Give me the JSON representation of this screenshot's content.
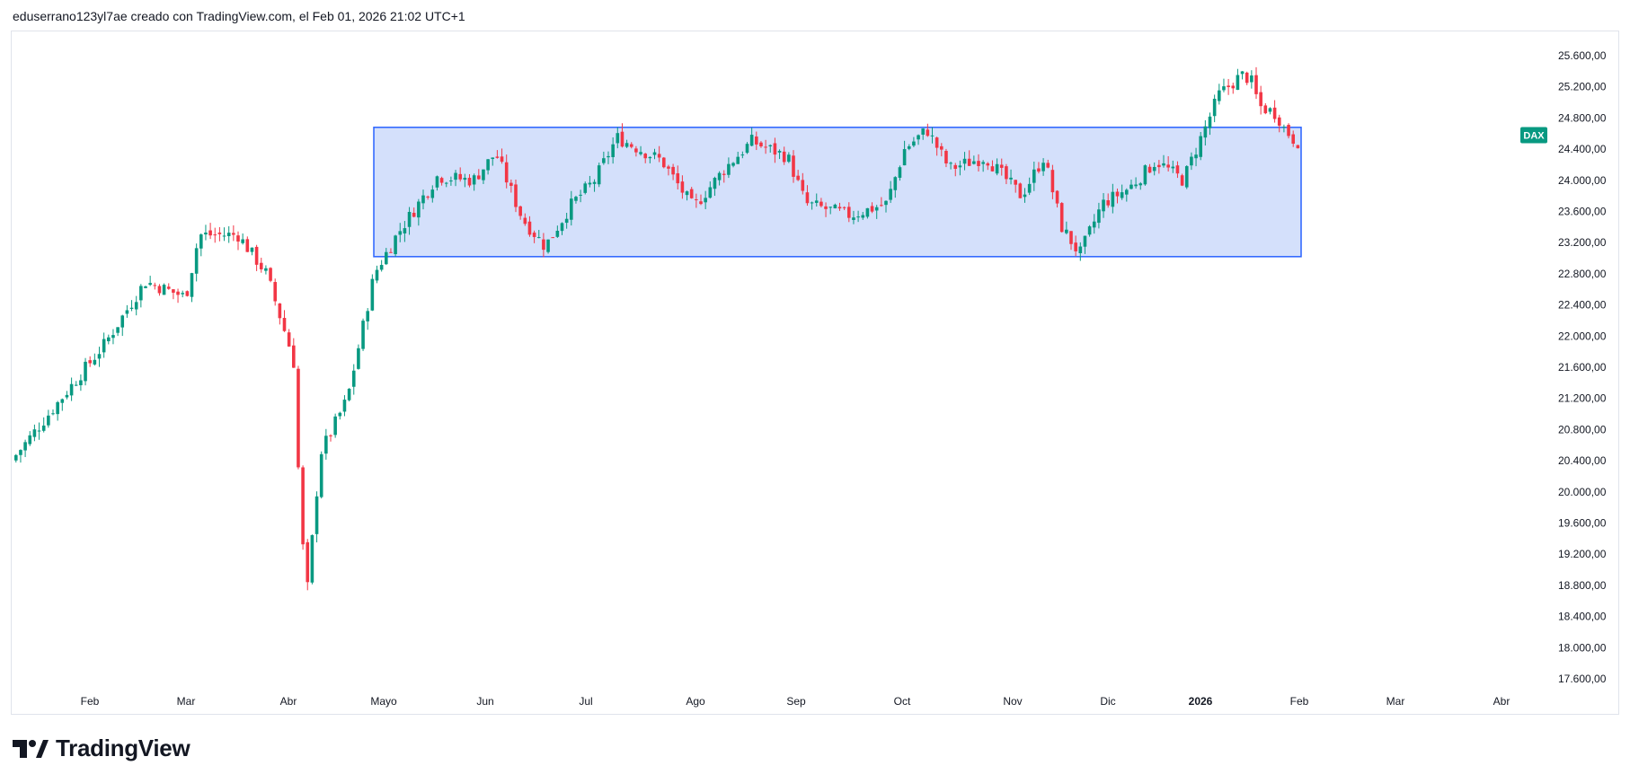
{
  "header": {
    "attribution": "eduserrano123yl7ae creado con TradingView.com, el Feb 01, 2026 21:02 UTC+1"
  },
  "brand": {
    "name": "TradingView",
    "logo_icon": "tradingview-logo-icon"
  },
  "colors": {
    "up": "#089981",
    "down": "#f23645",
    "range_fill": "#d4e0fb",
    "range_stroke": "#2962ff",
    "price_badge": "#089981",
    "grid_frame": "#e0e3eb"
  },
  "chart_data": {
    "type": "candlestick",
    "symbol_label": "DAX",
    "y_axis": {
      "ticks": [
        "25.600,00",
        "25.200,00",
        "24.800,00",
        "24.400,00",
        "24.000,00",
        "23.600,00",
        "23.200,00",
        "22.800,00",
        "22.400,00",
        "22.000,00",
        "21.600,00",
        "21.200,00",
        "20.800,00",
        "20.400,00",
        "20.000,00",
        "19.600,00",
        "19.200,00",
        "18.800,00",
        "18.400,00",
        "18.000,00",
        "17.600,00"
      ],
      "ylim": [
        17450,
        25800
      ]
    },
    "x_axis": {
      "ticks": [
        {
          "label": "Feb",
          "bold": false
        },
        {
          "label": "Mar",
          "bold": false
        },
        {
          "label": "Abr",
          "bold": false
        },
        {
          "label": "Mayo",
          "bold": false
        },
        {
          "label": "Jun",
          "bold": false
        },
        {
          "label": "Jul",
          "bold": false
        },
        {
          "label": "Ago",
          "bold": false
        },
        {
          "label": "Sep",
          "bold": false
        },
        {
          "label": "Oct",
          "bold": false
        },
        {
          "label": "Nov",
          "bold": false
        },
        {
          "label": "Dic",
          "bold": false
        },
        {
          "label": "2026",
          "bold": true
        },
        {
          "label": "Feb",
          "bold": false
        },
        {
          "label": "Mar",
          "bold": false
        },
        {
          "label": "Abr",
          "bold": false
        }
      ]
    },
    "range_box": {
      "top_price": 24680,
      "bottom_price": 23020,
      "start_month": "Mayo",
      "end_month": "Feb"
    },
    "last_price_label": "DAX",
    "approx_closing_path": [
      {
        "month": "Feb",
        "price": 20400
      },
      {
        "month": "Mar",
        "price": 22500
      },
      {
        "month": "Mar",
        "price": 23300
      },
      {
        "month": "Abr",
        "price": 22400
      },
      {
        "month": "Abr",
        "price": 19000
      },
      {
        "month": "Mayo",
        "price": 22800
      },
      {
        "month": "Jun",
        "price": 24000
      },
      {
        "month": "Jul",
        "price": 23200
      },
      {
        "month": "Jul",
        "price": 24400
      },
      {
        "month": "Ago",
        "price": 23700
      },
      {
        "month": "Ago",
        "price": 24400
      },
      {
        "month": "Sep",
        "price": 23600
      },
      {
        "month": "Oct",
        "price": 24600
      },
      {
        "month": "Nov",
        "price": 24100
      },
      {
        "month": "Nov",
        "price": 23100
      },
      {
        "month": "Dic",
        "price": 24200
      },
      {
        "month": "2026",
        "price": 24800
      },
      {
        "month": "2026",
        "price": 25400
      },
      {
        "month": "Feb",
        "price": 24500
      }
    ]
  }
}
